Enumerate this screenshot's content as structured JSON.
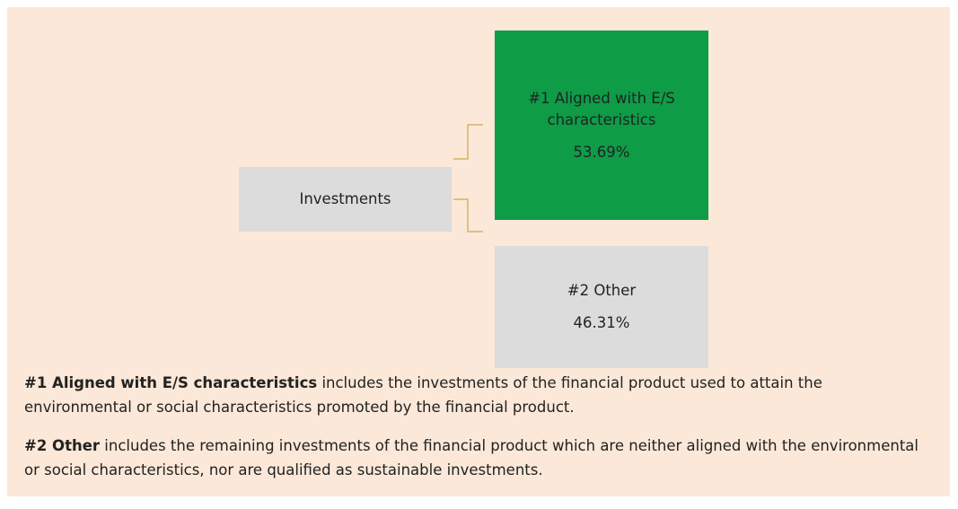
{
  "diagram": {
    "root": {
      "label": "Investments"
    },
    "children": [
      {
        "label": "#1 Aligned with E/S characteristics",
        "value": "53.69%"
      },
      {
        "label": "#2 Other",
        "value": "46.31%"
      }
    ]
  },
  "notes": [
    {
      "term": "#1 Aligned with E/S characteristics",
      "text": " includes the investments of the financial product used to attain the environmental or social characteristics promoted by the financial product."
    },
    {
      "term": "#2 Other",
      "text": " includes the remaining investments of the financial product which are neither aligned with the environmental or social characteristics, nor are qualified as sustainable investments."
    }
  ]
}
